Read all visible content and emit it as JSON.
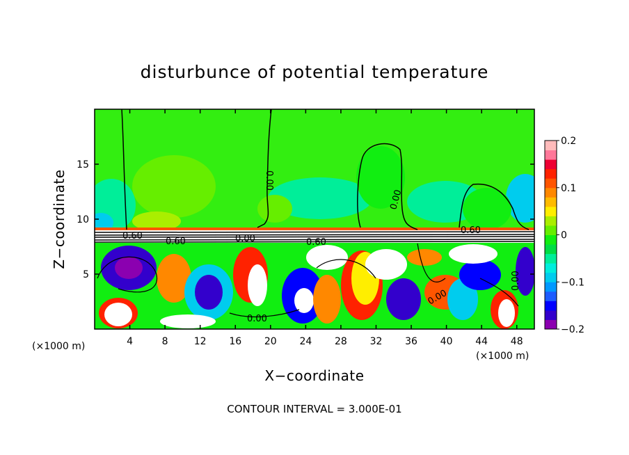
{
  "chart_data": {
    "type": "heatmap",
    "title": "disturbunce of potential temperature",
    "xlabel": "X−coordinate",
    "ylabel": "Z−coordinate",
    "x_unit": "(×1000 m)",
    "x_unit_right": "(×1000 m)",
    "xlim": [
      0,
      50
    ],
    "ylim": [
      0,
      20
    ],
    "x_ticks": [
      4,
      8,
      12,
      16,
      20,
      24,
      28,
      32,
      36,
      40,
      44,
      48
    ],
    "y_ticks": [
      5,
      10,
      15
    ],
    "colorbar": {
      "range": [
        -0.2,
        0.2
      ],
      "tick_values": [
        0.2,
        0.1,
        0,
        -0.1,
        -0.2
      ],
      "tick_labels": [
        "0.2",
        "0.1",
        "0",
        "−0.1",
        "−0.2"
      ],
      "colors": [
        "#8b00b0",
        "#3300cc",
        "#0000ff",
        "#1d5cff",
        "#0099ff",
        "#00ccee",
        "#00eedd",
        "#00ee99",
        "#00dd44",
        "#11ee11",
        "#66ee00",
        "#aaee00",
        "#ffee00",
        "#ffbb00",
        "#ff8800",
        "#ff5500",
        "#ff2200",
        "#ee0033",
        "#ff7799",
        "#ffbbbb"
      ]
    },
    "contour_labels": [
      "0.00",
      "0.60",
      "0.60",
      "0.60",
      "0.60",
      "0.00",
      "0.00",
      "0.00",
      "0.00",
      "0.00"
    ],
    "note": "CONTOUR INTERVAL = 3.000E-01"
  }
}
